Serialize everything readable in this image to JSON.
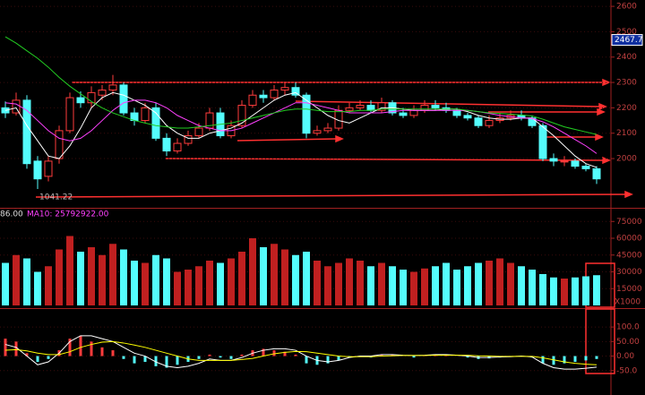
{
  "chart_data": [
    {
      "type": "candlestick",
      "ylim": [
        1806,
        2625
      ],
      "yticks": [
        2000,
        2100,
        2200,
        2300,
        2400,
        2500,
        2600
      ],
      "last_price": 2467.7,
      "low_label": "1041.22",
      "up_color": "#ff3c3c",
      "down_color": "#54fcfc",
      "open": [
        2200,
        2180,
        2230,
        1990,
        1930,
        2000,
        2110,
        2240,
        2220,
        2250,
        2270,
        2290,
        2180,
        2150,
        2200,
        2080,
        2030,
        2060,
        2090,
        2120,
        2180,
        2090,
        2130,
        2210,
        2250,
        2240,
        2270,
        2280,
        2250,
        2100,
        2110,
        2120,
        2190,
        2200,
        2210,
        2190,
        2220,
        2180,
        2170,
        2190,
        2210,
        2200,
        2190,
        2170,
        2160,
        2130,
        2150,
        2160,
        2170,
        2160,
        2130,
        2000,
        1990,
        1990,
        1970,
        1960
      ],
      "high": [
        2225,
        2260,
        2250,
        2010,
        2010,
        2130,
        2260,
        2265,
        2285,
        2290,
        2330,
        2300,
        2200,
        2220,
        2220,
        2100,
        2080,
        2110,
        2140,
        2200,
        2200,
        2150,
        2230,
        2270,
        2270,
        2290,
        2300,
        2300,
        2260,
        2130,
        2140,
        2210,
        2220,
        2230,
        2230,
        2240,
        2230,
        2200,
        2210,
        2230,
        2230,
        2220,
        2200,
        2180,
        2170,
        2170,
        2180,
        2190,
        2190,
        2170,
        2140,
        2020,
        2010,
        2000,
        1980,
        1970
      ],
      "low": [
        2160,
        2170,
        1960,
        1880,
        1910,
        1980,
        2100,
        2200,
        2200,
        2230,
        2250,
        2170,
        2130,
        2140,
        2070,
        2010,
        2020,
        2050,
        2080,
        2110,
        2080,
        2080,
        2120,
        2200,
        2220,
        2230,
        2250,
        2240,
        2080,
        2090,
        2100,
        2110,
        2180,
        2190,
        2180,
        2180,
        2170,
        2160,
        2160,
        2180,
        2190,
        2180,
        2160,
        2150,
        2120,
        2120,
        2140,
        2150,
        2150,
        2120,
        1990,
        1970,
        1970,
        1960,
        1950,
        1900
      ],
      "close": [
        2180,
        2230,
        1980,
        1920,
        1990,
        2110,
        2240,
        2220,
        2260,
        2270,
        2290,
        2180,
        2150,
        2200,
        2080,
        2030,
        2060,
        2090,
        2120,
        2180,
        2090,
        2130,
        2210,
        2250,
        2240,
        2270,
        2280,
        2250,
        2100,
        2110,
        2120,
        2190,
        2200,
        2210,
        2190,
        2220,
        2180,
        2170,
        2190,
        2210,
        2200,
        2190,
        2170,
        2160,
        2130,
        2150,
        2160,
        2170,
        2160,
        2130,
        2000,
        1990,
        1990,
        1970,
        1960,
        1920
      ],
      "series": [
        {
          "color": "#ffffff",
          "values": [
            2190,
            2200,
            2130,
            2070,
            2010,
            2000,
            2050,
            2120,
            2200,
            2240,
            2260,
            2250,
            2230,
            2210,
            2180,
            2130,
            2100,
            2080,
            2080,
            2100,
            2110,
            2120,
            2140,
            2170,
            2200,
            2230,
            2250,
            2260,
            2230,
            2200,
            2170,
            2150,
            2140,
            2160,
            2180,
            2200,
            2200,
            2195,
            2190,
            2190,
            2190,
            2195,
            2195,
            2185,
            2170,
            2160,
            2155,
            2155,
            2160,
            2160,
            2125,
            2090,
            2050,
            2010,
            1980,
            1965
          ]
        },
        {
          "color": "#ff40ff",
          "values": [
            2220,
            2215,
            2190,
            2150,
            2110,
            2080,
            2070,
            2080,
            2110,
            2150,
            2190,
            2220,
            2230,
            2230,
            2220,
            2200,
            2170,
            2150,
            2130,
            2120,
            2110,
            2110,
            2120,
            2140,
            2160,
            2180,
            2200,
            2220,
            2220,
            2210,
            2200,
            2190,
            2180,
            2180,
            2180,
            2180,
            2185,
            2190,
            2190,
            2190,
            2190,
            2190,
            2190,
            2190,
            2185,
            2178,
            2170,
            2165,
            2160,
            2158,
            2145,
            2125,
            2100,
            2075,
            2050,
            2020
          ]
        },
        {
          "color": "#22cc22",
          "values": [
            2480,
            2455,
            2425,
            2395,
            2360,
            2320,
            2285,
            2255,
            2225,
            2200,
            2180,
            2165,
            2150,
            2140,
            2130,
            2125,
            2120,
            2120,
            2125,
            2130,
            2135,
            2140,
            2150,
            2160,
            2170,
            2180,
            2190,
            2195,
            2195,
            2190,
            2185,
            2185,
            2185,
            2190,
            2190,
            2195,
            2195,
            2195,
            2195,
            2195,
            2195,
            2195,
            2195,
            2190,
            2185,
            2180,
            2178,
            2175,
            2172,
            2168,
            2155,
            2140,
            2125,
            2115,
            2105,
            2095
          ]
        }
      ]
    },
    {
      "type": "volume",
      "ylim": [
        0,
        85600
      ],
      "yticks": [
        15000,
        30000,
        45000,
        60000,
        75000
      ],
      "unit_label": "X1000",
      "legend": [
        "86.00",
        "MA10: 25792922.00"
      ],
      "values": [
        38000,
        45000,
        42000,
        30000,
        35000,
        50000,
        62000,
        48000,
        52000,
        45000,
        55000,
        50000,
        40000,
        38000,
        45000,
        42000,
        30000,
        32000,
        35000,
        40000,
        38000,
        42000,
        48000,
        60000,
        52000,
        55000,
        50000,
        45000,
        48000,
        40000,
        35000,
        38000,
        42000,
        40000,
        35000,
        38000,
        35000,
        32000,
        30000,
        33000,
        35000,
        38000,
        32000,
        35000,
        38000,
        40000,
        42000,
        38000,
        35000,
        32000,
        28000,
        25000,
        24000,
        25000,
        26000,
        27000
      ]
    },
    {
      "type": "macd",
      "ylim": [
        -134,
        162
      ],
      "yticks": [
        {
          "value": 100,
          "label": "100.0"
        },
        {
          "value": 50,
          "label": "50.00"
        },
        {
          "value": 0,
          "label": "0.00"
        },
        {
          "value": -50,
          "label": "-50.0"
        }
      ],
      "values": [
        60,
        50,
        10,
        -20,
        -10,
        20,
        60,
        70,
        50,
        30,
        20,
        -10,
        -25,
        -20,
        -35,
        -40,
        -30,
        -20,
        -10,
        5,
        -5,
        -10,
        5,
        20,
        25,
        20,
        15,
        5,
        -25,
        -30,
        -25,
        -15,
        -5,
        0,
        -5,
        5,
        5,
        0,
        -5,
        3,
        5,
        5,
        0,
        -5,
        -10,
        -8,
        -5,
        -3,
        0,
        -5,
        -25,
        -30,
        -25,
        -20,
        -15,
        -10
      ],
      "series": [
        {
          "color": "#ffffff",
          "values": [
            40,
            30,
            0,
            -30,
            -20,
            10,
            50,
            70,
            70,
            60,
            50,
            30,
            10,
            0,
            -20,
            -35,
            -40,
            -35,
            -25,
            -10,
            -15,
            -15,
            -5,
            10,
            20,
            25,
            25,
            20,
            0,
            -15,
            -20,
            -15,
            -5,
            0,
            0,
            5,
            5,
            3,
            2,
            3,
            5,
            5,
            3,
            0,
            -5,
            -5,
            -3,
            -2,
            0,
            -3,
            -25,
            -40,
            -45,
            -45,
            -42,
            -38
          ]
        },
        {
          "color": "#ffff00",
          "values": [
            20,
            22,
            18,
            10,
            5,
            5,
            15,
            30,
            40,
            48,
            50,
            45,
            38,
            30,
            20,
            10,
            0,
            -10,
            -15,
            -15,
            -15,
            -15,
            -12,
            -8,
            0,
            8,
            13,
            16,
            15,
            10,
            5,
            0,
            -2,
            -2,
            -2,
            0,
            1,
            2,
            2,
            2,
            3,
            3,
            3,
            3,
            1,
            0,
            -1,
            -1,
            -1,
            -1,
            -6,
            -13,
            -20,
            -25,
            -28,
            -30
          ]
        }
      ]
    }
  ]
}
